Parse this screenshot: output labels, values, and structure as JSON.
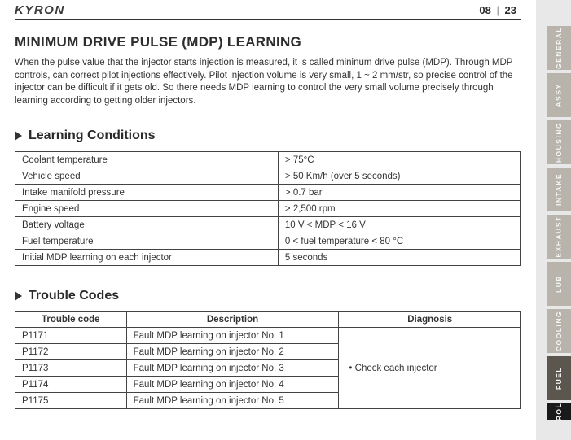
{
  "header": {
    "brand": "KYRON",
    "page_section": "08",
    "page_num": "23",
    "sep": "|"
  },
  "title": "MINIMUM DRIVE PULSE (MDP) LEARNING",
  "intro": "When the pulse value that the injector starts injection is measured, it is called mininum drive pulse (MDP). Through MDP controls, can correct pilot injections effectively. Pilot injection volume is very small, 1 ~ 2 mm/str, so precise control of the injector can be difficult if it gets old. So there needs MDP learning to control the very small volume precisely through learning according to getting older injectors.",
  "sections": {
    "learning": "Learning Conditions",
    "trouble": "Trouble Codes"
  },
  "conditions": [
    {
      "label": "Coolant temperature",
      "value": "> 75°C"
    },
    {
      "label": "Vehicle speed",
      "value": "> 50 Km/h (over 5 seconds)"
    },
    {
      "label": "Intake manifold pressure",
      "value": "> 0.7 bar"
    },
    {
      "label": "Engine speed",
      "value": "> 2,500 rpm"
    },
    {
      "label": "Battery voltage",
      "value": "10 V < MDP < 16 V"
    },
    {
      "label": "Fuel temperature",
      "value": "0 < fuel temperature < 80 °C"
    },
    {
      "label": "Initial MDP learning on each injector",
      "value": "5 seconds"
    }
  ],
  "codes_header": {
    "col1": "Trouble code",
    "col2": "Description",
    "col3": "Diagnosis"
  },
  "codes": [
    {
      "code": "P1171",
      "desc": "Fault MDP learning on injector No. 1"
    },
    {
      "code": "P1172",
      "desc": "Fault MDP learning on injector No. 2"
    },
    {
      "code": "P1173",
      "desc": "Fault MDP learning on injector No. 3"
    },
    {
      "code": "P1174",
      "desc": "Fault MDP learning on injector No. 4"
    },
    {
      "code": "P1175",
      "desc": "Fault MDP learning on injector No. 5"
    }
  ],
  "diagnosis": "•  Check each injector",
  "tabs": [
    {
      "label": "GENERAL",
      "style": "light"
    },
    {
      "label": "ASSY",
      "style": "light"
    },
    {
      "label": "HOUSING",
      "style": "light"
    },
    {
      "label": "INTAKE",
      "style": "light"
    },
    {
      "label": "EXHAUST",
      "style": "light"
    },
    {
      "label": "LUB",
      "style": "light"
    },
    {
      "label": "COOLING",
      "style": "light"
    },
    {
      "label": "FUEL",
      "style": "dark"
    },
    {
      "label": "ROL",
      "style": "black"
    }
  ]
}
